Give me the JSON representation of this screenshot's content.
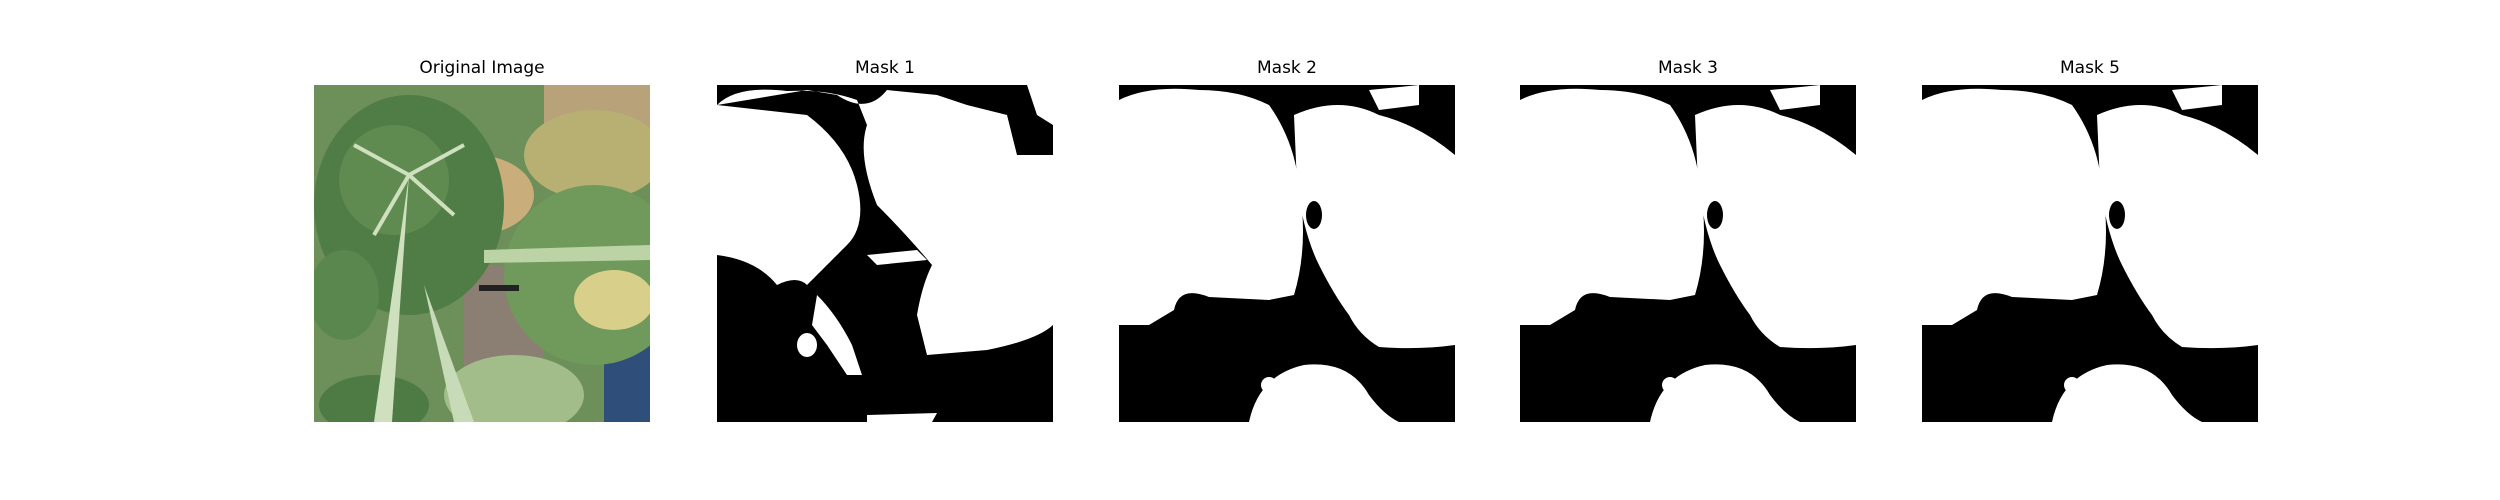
{
  "figure": {
    "panels": [
      {
        "title": "Original Image"
      },
      {
        "title": "Mask 1"
      },
      {
        "title": "Mask 2"
      },
      {
        "title": "Mask 3"
      },
      {
        "title": "Mask 5"
      }
    ]
  },
  "colors": {
    "background": "#ffffff",
    "mask_fg": "#ffffff",
    "mask_bg": "#000000",
    "leaf_dark": "#4f7d45",
    "leaf_mid": "#6f9a5c",
    "leaf_light": "#a9c38c",
    "stem": "#cfe0bf"
  }
}
